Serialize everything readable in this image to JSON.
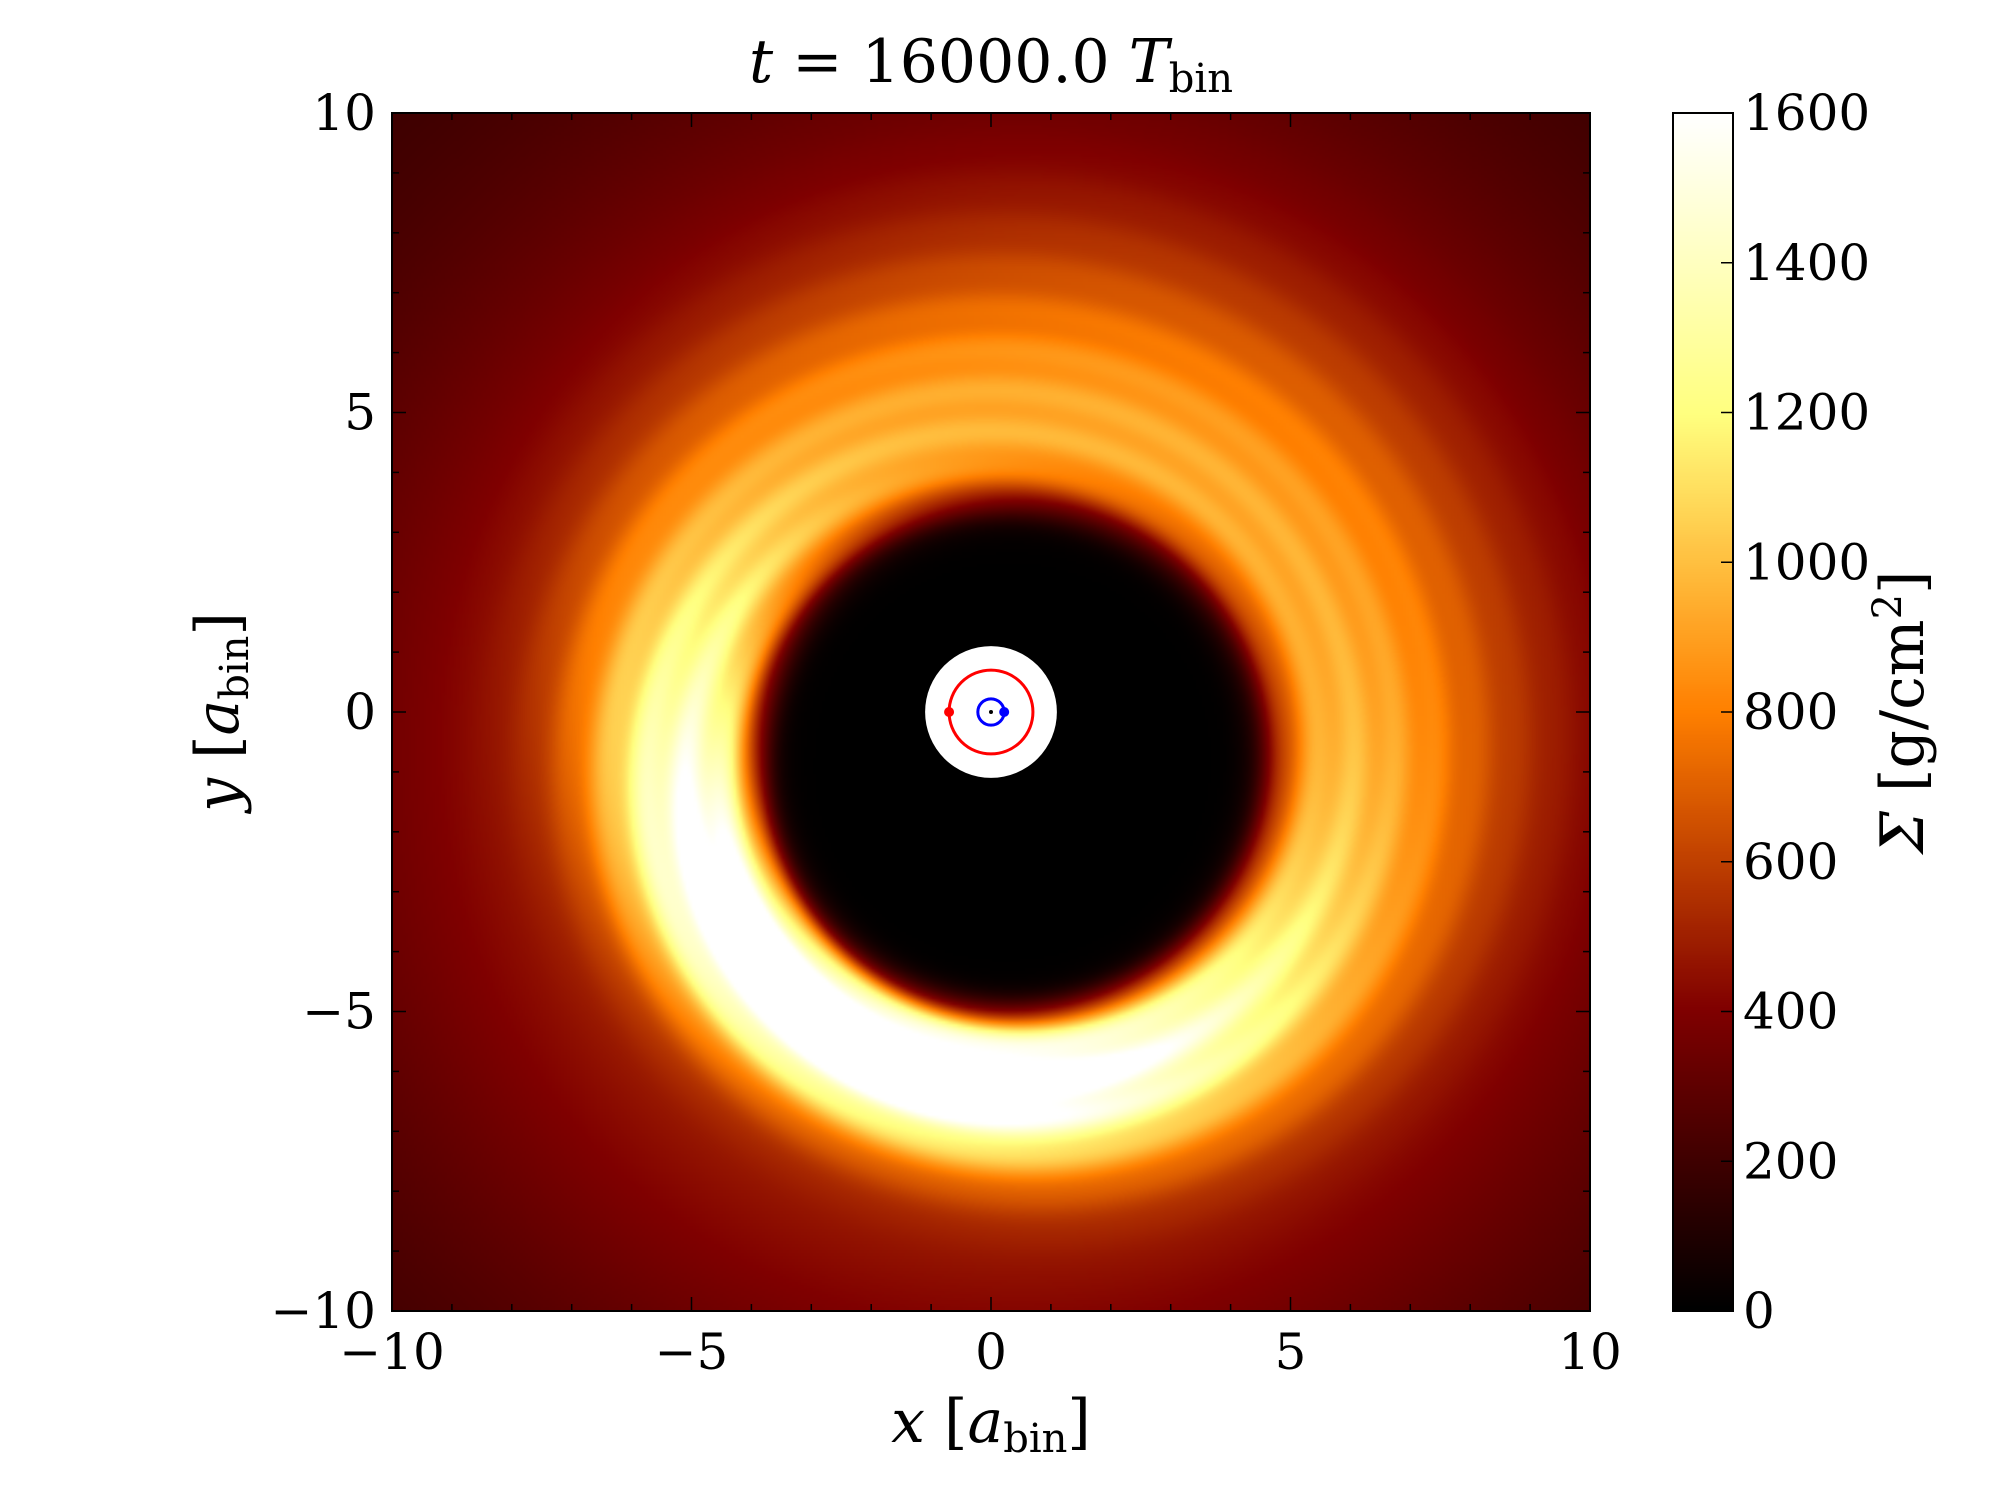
{
  "chart_data": {
    "type": "heatmap",
    "title": "t = 16000.0 T_bin",
    "title_parts": {
      "lhs": "t",
      "eq": " = 16000.0 ",
      "sym": "T",
      "sub": "bin"
    },
    "xlabel": "x [a_bin]",
    "xlabel_parts": {
      "var": "x",
      "open": " [",
      "sym": "a",
      "sub": "bin",
      "close": "]"
    },
    "ylabel": "y [a_bin]",
    "ylabel_parts": {
      "var": "y",
      "open": " [",
      "sym": "a",
      "sub": "bin",
      "close": "]"
    },
    "xlim": [
      -10,
      10
    ],
    "ylim": [
      -10,
      10
    ],
    "xticks": [
      -10,
      -5,
      0,
      5,
      10
    ],
    "xtick_labels": [
      "−10",
      "−5",
      "0",
      "5",
      "10"
    ],
    "yticks": [
      -10,
      -5,
      0,
      5,
      10
    ],
    "ytick_labels": [
      "−10",
      "−5",
      "0",
      "5",
      "10"
    ],
    "colorbar": {
      "label": "Σ [g/cm²]",
      "label_parts": {
        "sym": "Σ",
        "open": " [g/cm",
        "sup": "2",
        "close": "]"
      },
      "range": [
        0,
        1600
      ],
      "ticks": [
        0,
        200,
        400,
        600,
        800,
        1000,
        1200,
        1400,
        1600
      ],
      "tick_labels": [
        "0",
        "200",
        "400",
        "600",
        "800",
        "1000",
        "1200",
        "1400",
        "1600"
      ],
      "colormap": "afmhot"
    },
    "field": {
      "description_free": true,
      "cavity_center": [
        0.3,
        -0.9
      ],
      "cavity_radius": 4.3,
      "ring_peak_sigma": 1500,
      "ring_bright_direction_deg": 240,
      "ring_falloff_edge_sigma": 260,
      "background_sigma": 150
    },
    "excised_disk": {
      "center": [
        0,
        0
      ],
      "radius": 1.1,
      "color": "#ffffff"
    },
    "orbits": [
      {
        "name": "secondary",
        "color": "#ff0000",
        "center": [
          0,
          0
        ],
        "radius": 0.7,
        "point": [
          -0.7,
          0
        ]
      },
      {
        "name": "primary",
        "color": "#0000ff",
        "center": [
          0,
          0
        ],
        "radius": 0.22,
        "point": [
          0.22,
          0
        ]
      }
    ],
    "center_of_mass": [
      0,
      0
    ]
  }
}
